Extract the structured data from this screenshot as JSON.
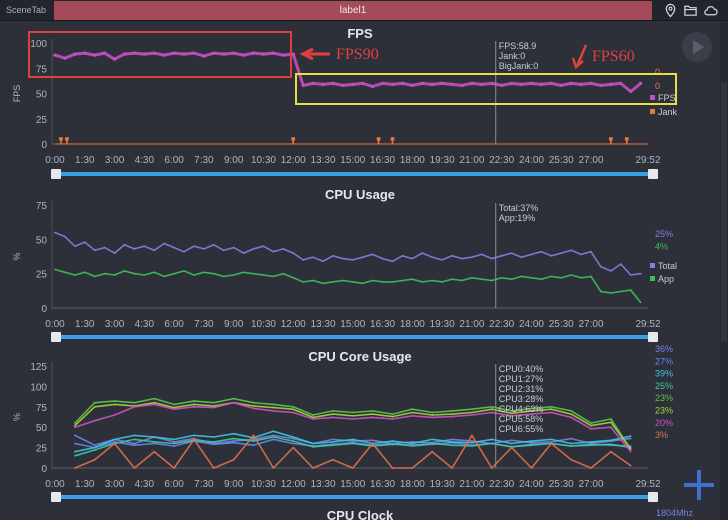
{
  "topbar": {
    "scene_tab": "SceneTab",
    "label": "label1",
    "icons": [
      "location-pin-icon",
      "folder-icon",
      "cloud-icon"
    ]
  },
  "annotations": {
    "fps90": "FPS90",
    "fps60": "FPS60"
  },
  "colors": {
    "fps": "#c84fc0",
    "jank": "#e8783a",
    "total": "#7b83e0",
    "app": "#3fbf5a",
    "accent": "#3aa0e8",
    "annot_red": "#e04040",
    "annot_yellow": "#e8e040"
  },
  "x_ticks": [
    "0:00",
    "1:30",
    "3:00",
    "4:30",
    "6:00",
    "7:30",
    "9:00",
    "10:30",
    "12:00",
    "13:30",
    "15:00",
    "16:30",
    "18:00",
    "19:30",
    "21:00",
    "22:30",
    "24:00",
    "25:30",
    "27:00",
    "29:52"
  ],
  "x_tick_minutes": [
    0,
    1.5,
    3,
    4.5,
    6,
    7.5,
    9,
    10.5,
    12,
    13.5,
    15,
    16.5,
    18,
    19.5,
    21,
    22.5,
    24,
    25.5,
    27,
    29.87
  ],
  "cursor_minute": 22.2,
  "chart_data": [
    {
      "type": "line",
      "title": "FPS",
      "ylabel": "FPS",
      "ylim": [
        0,
        100
      ],
      "yticks": [
        "0",
        "25",
        "50",
        "75",
        "100"
      ],
      "x": "every 0.5 min from 0",
      "series": [
        {
          "name": "FPS",
          "values": [
            88,
            85,
            89,
            90,
            88,
            90,
            84,
            89,
            90,
            89,
            90,
            88,
            90,
            89,
            90,
            87,
            90,
            89,
            90,
            88,
            90,
            89,
            90,
            88,
            89,
            58,
            60,
            59,
            60,
            58,
            59,
            60,
            57,
            60,
            59,
            60,
            58,
            60,
            59,
            60,
            59,
            58,
            60,
            59,
            60,
            58,
            60,
            59,
            60,
            59,
            60,
            58,
            60,
            59,
            60,
            58,
            59,
            60,
            52,
            60
          ]
        },
        {
          "name": "Jank",
          "events_minutes": [
            0.3,
            0.6,
            12,
            16.3,
            17,
            28,
            28.8
          ]
        }
      ],
      "tooltip": [
        "FPS:58.9",
        "Jank:0",
        "BigJank:0"
      ],
      "legend_values": [
        "0",
        "0"
      ],
      "legend": [
        "FPS",
        "Jank"
      ]
    },
    {
      "type": "line",
      "title": "CPU Usage",
      "ylabel": "%",
      "ylim": [
        0,
        75
      ],
      "yticks": [
        "0",
        "25",
        "50",
        "75"
      ],
      "series": [
        {
          "name": "Total",
          "values": [
            55,
            52,
            45,
            48,
            42,
            44,
            40,
            46,
            43,
            45,
            42,
            47,
            44,
            41,
            45,
            43,
            46,
            42,
            44,
            40,
            43,
            45,
            41,
            43,
            40,
            35,
            37,
            34,
            38,
            36,
            35,
            37,
            39,
            36,
            34,
            38,
            36,
            40,
            37,
            35,
            38,
            36,
            37,
            39,
            36,
            38,
            40,
            37,
            39,
            41,
            38,
            40,
            42,
            39,
            41,
            30,
            27,
            32,
            24,
            25
          ]
        },
        {
          "name": "App",
          "values": [
            28,
            26,
            24,
            26,
            23,
            25,
            24,
            27,
            25,
            24,
            26,
            23,
            25,
            27,
            24,
            26,
            25,
            23,
            24,
            26,
            25,
            24,
            23,
            25,
            22,
            19,
            20,
            18,
            19,
            20,
            19,
            18,
            20,
            19,
            19,
            20,
            21,
            19,
            20,
            19,
            21,
            20,
            22,
            21,
            20,
            22,
            21,
            23,
            22,
            21,
            23,
            22,
            24,
            22,
            23,
            12,
            11,
            12,
            13,
            4
          ]
        }
      ],
      "tooltip": [
        "Total:37%",
        "App:19%"
      ],
      "legend_values": [
        "25%",
        "4%"
      ],
      "legend": [
        "Total",
        "App"
      ]
    },
    {
      "type": "line",
      "title": "CPU Core Usage",
      "ylabel": "%",
      "ylim": [
        0,
        125
      ],
      "yticks": [
        "0",
        "25",
        "50",
        "75",
        "100",
        "125"
      ],
      "x": "every 1 min from 1",
      "series": [
        {
          "name": "CPU0",
          "color": "#7b7fe0",
          "values": [
            40,
            28,
            35,
            30,
            38,
            32,
            36,
            30,
            33,
            35,
            40,
            36,
            30,
            35,
            33,
            34,
            30,
            32,
            31,
            35,
            33,
            30,
            34,
            31,
            32,
            36,
            30,
            33,
            36
          ]
        },
        {
          "name": "CPU1",
          "color": "#5b8ff0",
          "values": [
            30,
            25,
            32,
            28,
            30,
            27,
            33,
            29,
            31,
            28,
            35,
            30,
            27,
            29,
            31,
            28,
            30,
            27,
            29,
            31,
            28,
            30,
            26,
            29,
            30,
            27,
            29,
            28,
            27
          ]
        },
        {
          "name": "CPU2",
          "color": "#3ec5e0",
          "values": [
            20,
            25,
            35,
            40,
            38,
            35,
            40,
            38,
            42,
            37,
            45,
            38,
            30,
            32,
            35,
            30,
            33,
            30,
            35,
            32,
            31,
            35,
            30,
            33,
            35,
            30,
            32,
            34,
            39
          ]
        },
        {
          "name": "CPU3",
          "color": "#40c8a0",
          "values": [
            15,
            22,
            30,
            35,
            32,
            30,
            34,
            32,
            36,
            33,
            38,
            33,
            26,
            28,
            30,
            27,
            29,
            28,
            30,
            28,
            27,
            30,
            26,
            28,
            30,
            27,
            28,
            29,
            25
          ]
        },
        {
          "name": "CPU4",
          "color": "#5ac84a",
          "values": [
            55,
            80,
            82,
            80,
            85,
            78,
            82,
            80,
            85,
            80,
            78,
            75,
            65,
            70,
            68,
            70,
            66,
            72,
            68,
            70,
            72,
            75,
            70,
            73,
            75,
            70,
            55,
            60,
            23
          ]
        },
        {
          "name": "CPU5",
          "color": "#a8d040",
          "values": [
            52,
            75,
            78,
            76,
            80,
            74,
            78,
            76,
            80,
            76,
            74,
            72,
            62,
            66,
            64,
            66,
            63,
            68,
            65,
            66,
            68,
            72,
            67,
            70,
            72,
            66,
            52,
            56,
            23
          ]
        },
        {
          "name": "CPU6",
          "color": "#d050c8",
          "values": [
            50,
            58,
            65,
            75,
            78,
            72,
            75,
            74,
            80,
            73,
            70,
            68,
            60,
            62,
            60,
            62,
            60,
            64,
            62,
            63,
            65,
            68,
            64,
            66,
            68,
            62,
            48,
            50,
            20
          ]
        },
        {
          "name": "CPU7",
          "color": "#e07050",
          "values": [
            0,
            10,
            30,
            0,
            20,
            0,
            35,
            0,
            10,
            40,
            0,
            25,
            0,
            10,
            0,
            30,
            0,
            0,
            20,
            0,
            40,
            0,
            25,
            0,
            30,
            10,
            0,
            20,
            3
          ]
        }
      ],
      "tooltip": [
        "CPU0:40%",
        "CPU1:27%",
        "CPU2:31%",
        "CPU3:28%",
        "CPU4:63%",
        "CPU5:58%",
        "CPU6:55%"
      ],
      "legend_values": [
        "36%",
        "27%",
        "39%",
        "25%",
        "23%",
        "23%",
        "20%",
        "3%"
      ]
    },
    {
      "type": "line",
      "title": "CPU Clock",
      "legend_values": [
        "1804Mhz"
      ]
    }
  ]
}
